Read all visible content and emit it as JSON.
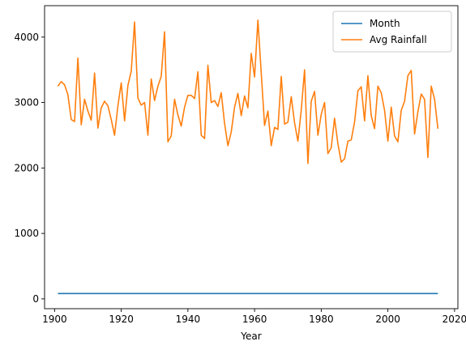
{
  "chart_data": {
    "type": "line",
    "title": "",
    "xlabel": "Year",
    "ylabel": "",
    "xlim": [
      1897,
      2021
    ],
    "ylim": [
      -150,
      4480
    ],
    "x_ticks": [
      1900,
      1920,
      1940,
      1960,
      1980,
      2000,
      2020
    ],
    "y_ticks": [
      0,
      1000,
      2000,
      3000,
      4000
    ],
    "grid": false,
    "legend_position": "top-right",
    "x_start": 1901,
    "series": [
      {
        "name": "Month",
        "color": "#1f77b4",
        "values": [
          81,
          81,
          81,
          81,
          81,
          81,
          81,
          81,
          81,
          81,
          81,
          81,
          81,
          81,
          81,
          81,
          81,
          81,
          81,
          81,
          81,
          81,
          81,
          81,
          81,
          81,
          81,
          81,
          81,
          81,
          81,
          81,
          81,
          81,
          81,
          81,
          81,
          81,
          81,
          81,
          81,
          81,
          81,
          81,
          81,
          81,
          81,
          81,
          81,
          81,
          81,
          81,
          81,
          81,
          81,
          81,
          81,
          81,
          81,
          81,
          81,
          81,
          81,
          81,
          81,
          81,
          81,
          81,
          81,
          81,
          81,
          81,
          81,
          81,
          81,
          81,
          81,
          81,
          81,
          81,
          81,
          81,
          81,
          81,
          81,
          81,
          81,
          81,
          81,
          81,
          81,
          81,
          81,
          81,
          81,
          81,
          81,
          81,
          81,
          81,
          81,
          81,
          81,
          81,
          81,
          81,
          81,
          81,
          81,
          81,
          81,
          81,
          81,
          81,
          81
        ]
      },
      {
        "name": "Avg Rainfall",
        "color": "#ff7f0e",
        "values": [
          3250,
          3320,
          3270,
          3120,
          2740,
          2710,
          3680,
          2660,
          3050,
          2870,
          2730,
          3450,
          2610,
          2920,
          3020,
          2950,
          2740,
          2500,
          2950,
          3300,
          2720,
          3260,
          3480,
          4230,
          3070,
          2960,
          3000,
          2500,
          3360,
          3030,
          3250,
          3400,
          4080,
          2400,
          2490,
          3050,
          2810,
          2640,
          2930,
          3110,
          3110,
          3060,
          3470,
          2500,
          2450,
          3570,
          3000,
          3030,
          2940,
          3150,
          2680,
          2340,
          2550,
          2930,
          3140,
          2800,
          3100,
          2920,
          3750,
          3390,
          4260,
          3450,
          2650,
          2870,
          2340,
          2620,
          2590,
          3400,
          2670,
          2700,
          3090,
          2690,
          2410,
          2880,
          3500,
          2070,
          3020,
          3170,
          2500,
          2820,
          3000,
          2220,
          2310,
          2760,
          2370,
          2090,
          2140,
          2410,
          2430,
          2700,
          3180,
          3240,
          2720,
          3410,
          2800,
          2600,
          3250,
          3150,
          2880,
          2410,
          2930,
          2490,
          2400,
          2880,
          3020,
          3410,
          3490,
          2520,
          2860,
          3130,
          3050,
          2160,
          3250,
          3050,
          2600
        ]
      }
    ]
  }
}
